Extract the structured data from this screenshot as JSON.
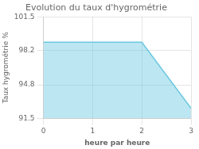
{
  "chart_data": {
    "type": "area",
    "title": "Evolution du taux d'hygrométrie",
    "xlabel": "heure par heure",
    "ylabel": "Taux hygrométrie %",
    "x": [
      0,
      2,
      3
    ],
    "values": [
      99.0,
      99.0,
      92.5
    ],
    "color": "#6bc8e0",
    "xlim": [
      0,
      3
    ],
    "xticks": [
      0,
      1,
      2,
      3
    ],
    "ylim": [
      91.5,
      101.5
    ],
    "yticks": [
      91.5,
      94.8,
      98.2,
      101.5
    ],
    "grid": true
  }
}
